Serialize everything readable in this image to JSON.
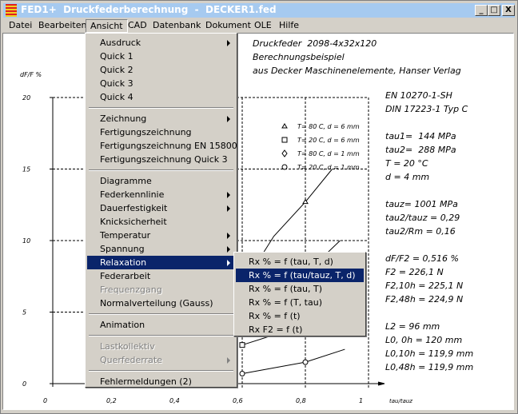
{
  "window": {
    "title": "FED1+  Druckfederberechnung  -  DECKER1.fed",
    "controls": {
      "minimize": "_",
      "maximize": "□",
      "close": "X"
    }
  },
  "menubar": [
    "Datei",
    "Bearbeiten",
    "Ansicht",
    "CAD",
    "Datenbank",
    "Dokument",
    "OLE",
    "Hilfe"
  ],
  "ansicht_menu": [
    {
      "label": "Ausdruck",
      "submenu": true
    },
    {
      "label": "Quick 1"
    },
    {
      "label": "Quick 2"
    },
    {
      "label": "Quick 3"
    },
    {
      "label": "Quick 4"
    },
    {
      "sep": true
    },
    {
      "label": "Zeichnung",
      "submenu": true
    },
    {
      "label": "Fertigungszeichnung"
    },
    {
      "label": "Fertigungszeichnung EN 15800"
    },
    {
      "label": "Fertigungszeichnung Quick 3"
    },
    {
      "sep": true
    },
    {
      "label": "Diagramme"
    },
    {
      "label": "Federkennlinie",
      "submenu": true
    },
    {
      "label": "Dauerfestigkeit",
      "submenu": true
    },
    {
      "label": "Knicksicherheit"
    },
    {
      "label": "Temperatur",
      "submenu": true
    },
    {
      "label": "Spannung",
      "submenu": true
    },
    {
      "label": "Relaxation",
      "submenu": true,
      "highlighted": true
    },
    {
      "label": "Federarbeit"
    },
    {
      "label": "Frequenzgang",
      "disabled": true
    },
    {
      "label": "Normalverteilung (Gauss)"
    },
    {
      "sep": true
    },
    {
      "label": "Animation"
    },
    {
      "sep": true
    },
    {
      "label": "Lastkollektiv",
      "disabled": true
    },
    {
      "label": "Querfederrate",
      "submenu": true,
      "disabled": true
    },
    {
      "sep": true
    },
    {
      "label": "Fehlermeldungen (2)"
    }
  ],
  "relaxation_submenu": [
    {
      "label": "Rx % = f (tau, T, d)"
    },
    {
      "label": "Rx % = f (tau/tauz, T, d)",
      "highlighted": true
    },
    {
      "label": "Rx % = f (tau, T)"
    },
    {
      "label": "Rx % = f (T, tau)"
    },
    {
      "label": "Rx % = f (t)"
    },
    {
      "label": "Rx F2 = f (t)"
    }
  ],
  "header_lines": [
    "Druckfeder  2098-4x32x120",
    "Berechnungsbeispiel",
    "aus Decker Maschinenelemente, Hanser Verlag"
  ],
  "info_lines": [
    "EN 10270-1-SH",
    "DIN 17223-1 Typ C",
    "",
    "tau1=  144 MPa",
    "tau2=  288 MPa",
    "T = 20 °C",
    "d = 4 mm",
    "",
    "tauz= 1001 MPa",
    "tau2/tauz = 0,29",
    "tau2/Rm = 0,16",
    "",
    "dF/F2 = 0,516 %",
    "F2 = 226,1 N",
    "F2,10h = 225,1 N",
    "F2,48h = 224,9 N",
    "",
    "L2 = 96 mm",
    "L0, 0h = 120 mm",
    "L0,10h = 119,9 mm",
    "L0,48h = 119,9 mm"
  ],
  "chart_data": {
    "type": "line",
    "xlabel": "tau/tauz",
    "ylabel": "dF/F %",
    "xlim": [
      0,
      1
    ],
    "ylim": [
      0,
      20
    ],
    "x_ticks": [
      "0",
      "0,2",
      "0,4",
      "0,6",
      "0,8",
      "1"
    ],
    "y_ticks": [
      "0",
      "5",
      "10",
      "15",
      "20"
    ],
    "grid": "dashed",
    "legend": [
      "T= 80 C,  d = 6 mm",
      "T= 20 C,  d = 6 mm",
      "T= 80 C,  d = 1 mm",
      "T= 20 C,  d = 1 mm"
    ],
    "legend_position": "top-right",
    "series": [
      {
        "name": "T= 80 C,  d = 6 mm",
        "marker": "triangle",
        "points": [
          [
            0.62,
            7.5
          ],
          [
            0.7,
            10.3
          ],
          [
            0.8,
            12.7
          ],
          [
            0.885,
            15
          ]
        ]
      },
      {
        "name": "T= 20 C,  d = 6 mm",
        "marker": "square",
        "points": [
          [
            0.6,
            2.7
          ],
          [
            0.7,
            3.4
          ]
        ]
      },
      {
        "name": "T= 80 C,  d = 1 mm",
        "marker": "diamond",
        "points": [
          [
            0.6,
            3.6
          ],
          [
            0.83,
            8.3
          ],
          [
            0.91,
            10
          ]
        ]
      },
      {
        "name": "T= 20 C,  d = 1 mm",
        "marker": "circle",
        "points": [
          [
            0.6,
            0.7
          ],
          [
            0.8,
            1.5
          ],
          [
            0.925,
            2.4
          ]
        ]
      }
    ]
  }
}
